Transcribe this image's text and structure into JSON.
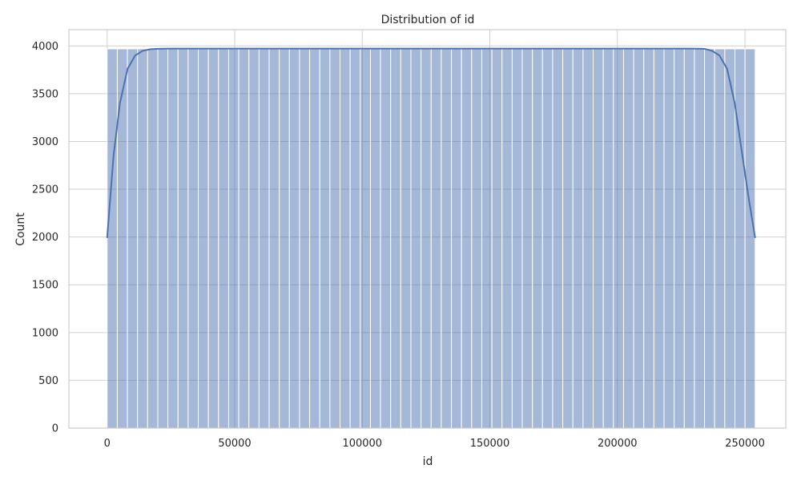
{
  "chart_data": {
    "type": "bar",
    "title": "Distribution of id",
    "xlabel": "id",
    "ylabel": "Count",
    "xlim": [
      -15000,
      266000
    ],
    "ylim": [
      0,
      4170
    ],
    "x_ticks": [
      0,
      50000,
      100000,
      150000,
      200000,
      250000
    ],
    "y_ticks": [
      0,
      500,
      1000,
      1500,
      2000,
      2500,
      3000,
      3500,
      4000
    ],
    "grid": true,
    "bins": {
      "start": 0,
      "end": 254000,
      "count": 64,
      "value": 3969
    },
    "kde": {
      "x": [
        0,
        2500,
        5000,
        8000,
        11000,
        14000,
        17000,
        20000,
        25000,
        50000,
        100000,
        150000,
        200000,
        229000,
        234000,
        237000,
        240000,
        243000,
        246000,
        249000,
        251500,
        254000
      ],
      "y": [
        1990,
        2850,
        3400,
        3760,
        3900,
        3950,
        3965,
        3970,
        3972,
        3972,
        3972,
        3972,
        3972,
        3972,
        3970,
        3950,
        3900,
        3760,
        3400,
        2850,
        2400,
        1990
      ]
    },
    "colors": {
      "bar": "#4c72b0",
      "kde": "#4c72b0"
    }
  }
}
